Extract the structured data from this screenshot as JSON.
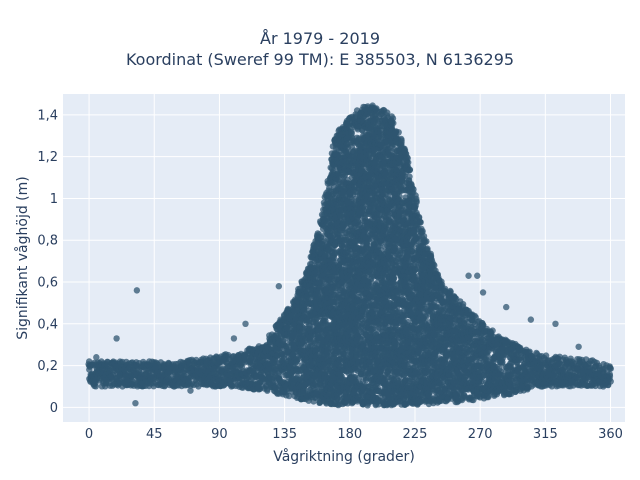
{
  "chart_data": {
    "type": "scatter",
    "title_line1": "År 1979 - 2019",
    "title_line2": "Koordinat (Sweref 99 TM): E 385503, N 6136295",
    "xlabel": "Vågriktning (grader)",
    "ylabel": "Signifikant våghöjd (m)",
    "xlim": [
      -18,
      370
    ],
    "ylim": [
      -0.07,
      1.5
    ],
    "x_ticks": [
      0,
      45,
      90,
      135,
      180,
      225,
      270,
      315,
      360
    ],
    "y_ticks": [
      0,
      0.2,
      0.4,
      0.6,
      0.8,
      1,
      1.2,
      1.4
    ],
    "y_tick_labels": [
      "0",
      "0,2",
      "0,4",
      "0,6",
      "0,8",
      "1",
      "1,2",
      "1,4"
    ],
    "grid": true,
    "plot_bg": "#e5ecf6",
    "marker_color": "#2f5670",
    "envelope": {
      "x": [
        0,
        20,
        40,
        60,
        80,
        100,
        120,
        140,
        150,
        160,
        170,
        180,
        190,
        200,
        210,
        220,
        230,
        240,
        250,
        260,
        270,
        280,
        290,
        300,
        315,
        330,
        345,
        360
      ],
      "y_max": [
        0.22,
        0.22,
        0.22,
        0.22,
        0.24,
        0.26,
        0.3,
        0.5,
        0.65,
        0.9,
        1.3,
        1.4,
        1.44,
        1.45,
        1.4,
        1.2,
        0.85,
        0.65,
        0.55,
        0.48,
        0.42,
        0.36,
        0.32,
        0.28,
        0.25,
        0.24,
        0.23,
        0.2
      ],
      "y_min": [
        0.1,
        0.1,
        0.1,
        0.1,
        0.1,
        0.1,
        0.08,
        0.05,
        0.03,
        0.02,
        0.01,
        0.01,
        0.01,
        0.01,
        0.01,
        0.01,
        0.01,
        0.02,
        0.02,
        0.03,
        0.04,
        0.05,
        0.06,
        0.08,
        0.1,
        0.1,
        0.1,
        0.1
      ]
    },
    "outliers": [
      {
        "x": 33,
        "y": 0.56
      },
      {
        "x": 19,
        "y": 0.33
      },
      {
        "x": 32,
        "y": 0.02
      },
      {
        "x": 108,
        "y": 0.4
      },
      {
        "x": 100,
        "y": 0.33
      },
      {
        "x": 131,
        "y": 0.58
      },
      {
        "x": 262,
        "y": 0.63
      },
      {
        "x": 268,
        "y": 0.63
      },
      {
        "x": 272,
        "y": 0.55
      },
      {
        "x": 288,
        "y": 0.48
      },
      {
        "x": 305,
        "y": 0.42
      },
      {
        "x": 322,
        "y": 0.4
      },
      {
        "x": 338,
        "y": 0.29
      },
      {
        "x": 355,
        "y": 0.1
      },
      {
        "x": 5,
        "y": 0.24
      },
      {
        "x": 70,
        "y": 0.08
      }
    ]
  }
}
